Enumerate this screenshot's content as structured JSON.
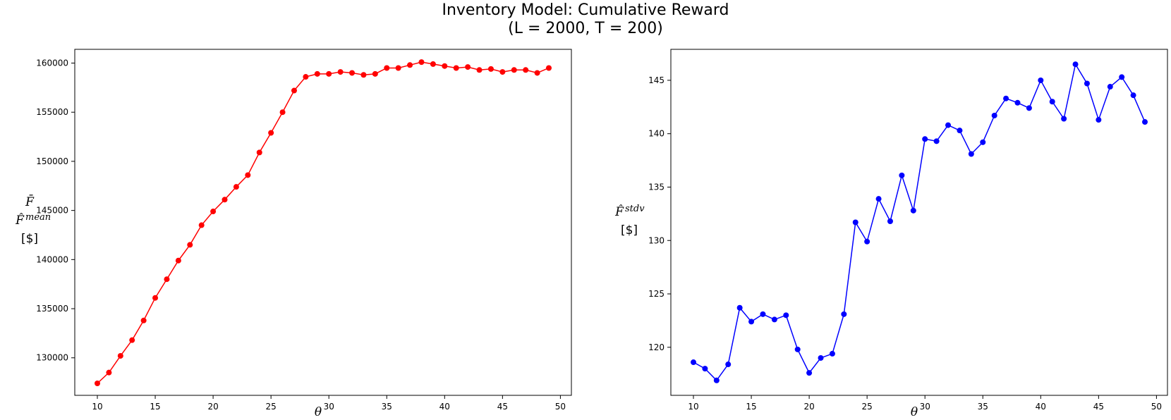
{
  "figure": {
    "title_line1": "Inventory Model: Cumulative Reward",
    "title_line2": "(L = 2000, T = 200)"
  },
  "chart_data": [
    {
      "type": "line",
      "xlabel": "θ",
      "ylabel_top": "F̄",
      "ylabel_mid": "F̂",
      "ylabel_mid_sup": "mean",
      "ylabel_unit": "[$]",
      "xlim": [
        8.05,
        50.95
      ],
      "ylim": [
        126180,
        161400
      ],
      "xticks": [
        10,
        15,
        20,
        25,
        30,
        35,
        40,
        45,
        50
      ],
      "yticks": [
        130000,
        135000,
        140000,
        145000,
        150000,
        155000,
        160000
      ],
      "color": "#ff0000",
      "x": [
        10,
        11,
        12,
        13,
        14,
        15,
        16,
        17,
        18,
        19,
        20,
        21,
        22,
        23,
        24,
        25,
        26,
        27,
        28,
        29,
        30,
        31,
        32,
        33,
        34,
        35,
        36,
        37,
        38,
        39,
        40,
        41,
        42,
        43,
        44,
        45,
        46,
        47,
        48,
        49
      ],
      "y": [
        127400,
        128500,
        130200,
        131800,
        133800,
        136100,
        138000,
        139900,
        141500,
        143500,
        144900,
        146100,
        147400,
        148600,
        150900,
        152900,
        155000,
        157200,
        158600,
        158900,
        158900,
        159100,
        159000,
        158800,
        158900,
        159500,
        159500,
        159800,
        160100,
        159900,
        159700,
        159500,
        159600,
        159300,
        159400,
        159100,
        159300,
        159300,
        159000,
        159500
      ]
    },
    {
      "type": "line",
      "xlabel": "θ",
      "ylabel_mid": "F̂",
      "ylabel_mid_sup": "stdv",
      "ylabel_unit": "[$]",
      "xlim": [
        8.05,
        50.95
      ],
      "ylim": [
        115.5,
        147.9
      ],
      "xticks": [
        10,
        15,
        20,
        25,
        30,
        35,
        40,
        45,
        50
      ],
      "yticks": [
        120,
        125,
        130,
        135,
        140,
        145
      ],
      "color": "#0000ff",
      "x": [
        10,
        11,
        12,
        13,
        14,
        15,
        16,
        17,
        18,
        19,
        20,
        21,
        22,
        23,
        24,
        25,
        26,
        27,
        28,
        29,
        30,
        31,
        32,
        33,
        34,
        35,
        36,
        37,
        38,
        39,
        40,
        41,
        42,
        43,
        44,
        45,
        46,
        47,
        48,
        49
      ],
      "y": [
        118.6,
        118.0,
        116.9,
        118.4,
        123.7,
        122.4,
        123.1,
        122.6,
        123.0,
        119.8,
        117.6,
        119.0,
        119.4,
        123.1,
        131.7,
        129.9,
        133.9,
        131.8,
        136.1,
        132.8,
        139.5,
        139.3,
        140.8,
        140.3,
        138.1,
        139.2,
        141.7,
        143.3,
        142.9,
        142.4,
        145.0,
        143.0,
        141.4,
        146.5,
        144.7,
        141.3,
        144.4,
        145.3,
        143.6,
        141.1
      ]
    }
  ]
}
